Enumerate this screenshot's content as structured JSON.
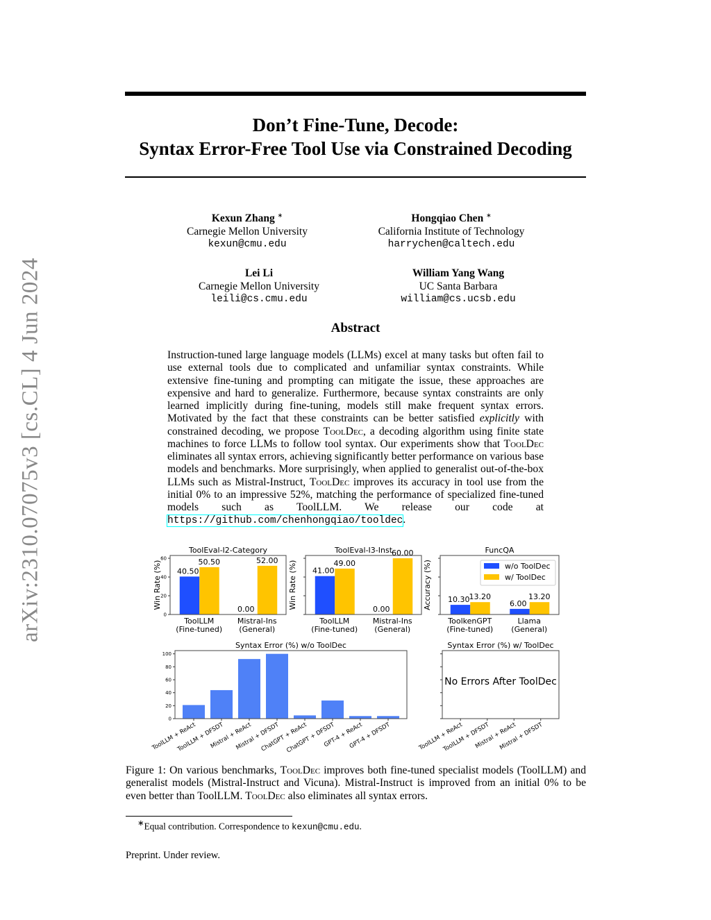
{
  "sidebar_stamp": "arXiv:2310.07075v3  [cs.CL]  4 Jun 2024",
  "title": {
    "line1": "Don’t Fine-Tune, Decode:",
    "line2": "Syntax Error-Free Tool Use via Constrained Decoding"
  },
  "authors": [
    {
      "name": "Kexun Zhang",
      "mark": "∗",
      "affiliation": "Carnegie Mellon University",
      "email": "kexun@cmu.edu"
    },
    {
      "name": "Hongqiao Chen",
      "mark": "∗",
      "affiliation": "California Institute of Technology",
      "email": "harrychen@caltech.edu"
    },
    {
      "name": "Lei Li",
      "mark": "",
      "affiliation": "Carnegie Mellon University",
      "email": "leili@cs.cmu.edu"
    },
    {
      "name": "William Yang Wang",
      "mark": "",
      "affiliation": "UC Santa Barbara",
      "email": "william@cs.ucsb.edu"
    }
  ],
  "abstract_heading": "Abstract",
  "abstract": [
    {
      "t": "Instruction-tuned large language models (LLMs) excel at many tasks but often fail to use external tools due to complicated and unfamiliar syntax constraints. While extensive fine-tuning and prompting can mitigate the issue, these approaches are expensive and hard to generalize. Furthermore, because syntax constraints are only learned implicitly during fine-tuning, models still make frequent syntax errors. Motivated by the fact that these constraints can be better satisfied ",
      "s": "n"
    },
    {
      "t": "explicitly",
      "s": "em"
    },
    {
      "t": " with constrained decoding, we propose ",
      "s": "n"
    },
    {
      "t": "ToolDec",
      "s": "sc"
    },
    {
      "t": ", a decoding algorithm using finite state machines to force LLMs to follow tool syntax. Our experiments show that ",
      "s": "n"
    },
    {
      "t": "ToolDec",
      "s": "sc"
    },
    {
      "t": " eliminates all syntax errors, achieving significantly better performance on various base models and benchmarks. More surprisingly, when applied to generalist out-of-the-box LLMs such as Mistral-Instruct, ",
      "s": "n"
    },
    {
      "t": "ToolDec",
      "s": "sc"
    },
    {
      "t": " improves its accuracy in tool use from the initial 0% to an impressive 52%, matching the performance of specialized fine-tuned models such as ToolLLM. We release our code at ",
      "s": "n"
    },
    {
      "t": "https://github.com/chenhongqiao/tooldec",
      "s": "link"
    },
    {
      "t": ".",
      "s": "n"
    }
  ],
  "caption": [
    {
      "t": "Figure 1: On various benchmarks, ",
      "s": "n"
    },
    {
      "t": "ToolDec",
      "s": "sc"
    },
    {
      "t": " improves both fine-tuned specialist models (ToolLLM) and generalist models (Mistral-Instruct and Vicuna). Mistral-Instruct is improved from an initial 0% to be even better than ToolLLM. ",
      "s": "n"
    },
    {
      "t": "ToolDec",
      "s": "sc"
    },
    {
      "t": " also eliminates all syntax errors.",
      "s": "n"
    }
  ],
  "footnote": {
    "mark": "∗",
    "text": "Equal contribution. Correspondence to ",
    "email": "kexun@cmu.edu",
    "end": "."
  },
  "preprint": "Preprint. Under review.",
  "colors": {
    "without": "#1f4fff",
    "with": "#ffc400",
    "syntax_bar": "#4f81f7"
  },
  "chart_data": [
    {
      "type": "bar",
      "title": "ToolEval-I2-Category",
      "ylabel": "Win Rate (%)",
      "ylim": [
        0,
        63
      ],
      "yticks": [
        0,
        20,
        40,
        60
      ],
      "categories": [
        "ToolLLM\n(Fine-tuned)",
        "Mistral-Ins\n(General)"
      ],
      "series": [
        {
          "name": "w/o ToolDec",
          "values": [
            40.5,
            0.0
          ]
        },
        {
          "name": "w/ ToolDec",
          "values": [
            50.5,
            52.0
          ]
        }
      ],
      "data_labels": [
        [
          "40.50",
          "0.00"
        ],
        [
          "50.50",
          "52.00"
        ]
      ]
    },
    {
      "type": "bar",
      "title": "ToolEval-I3-Inst",
      "ylabel": "Win Rate (%)",
      "ylim": [
        0,
        63
      ],
      "categories": [
        "ToolLLM\n(Fine-tuned)",
        "Mistral-Ins\n(General)"
      ],
      "series": [
        {
          "name": "w/o ToolDec",
          "values": [
            41.0,
            0.0
          ]
        },
        {
          "name": "w/ ToolDec",
          "values": [
            49.0,
            60.0
          ]
        }
      ],
      "data_labels": [
        [
          "41.00",
          "0.00"
        ],
        [
          "49.00",
          "60.00"
        ]
      ]
    },
    {
      "type": "bar",
      "title": "FuncQA",
      "ylabel": "Accuracy (%)",
      "ylim": [
        0,
        63
      ],
      "categories": [
        "ToolkenGPT\n(Fine-tuned)",
        "Llama\n(General)"
      ],
      "series": [
        {
          "name": "w/o ToolDec",
          "values": [
            10.3,
            6.0
          ]
        },
        {
          "name": "w/ ToolDec",
          "values": [
            13.2,
            13.2
          ]
        }
      ],
      "data_labels": [
        [
          "10.30",
          "6.00"
        ],
        [
          "13.20",
          "13.20"
        ]
      ],
      "legend": "top-right"
    },
    {
      "type": "bar",
      "title": "Syntax Error (%) w/o ToolDec",
      "ylim": [
        0,
        105
      ],
      "yticks": [
        0,
        20,
        40,
        60,
        80,
        100
      ],
      "categories": [
        "ToolLLM + ReAct",
        "ToolLLM + DFSDT",
        "Mistral + ReAct",
        "Mistral + DFSDT",
        "ChatGPT + ReAct",
        "ChatGPT + DFSDT",
        "GPT-4 + ReAct",
        "GPT-4 + DFSDT"
      ],
      "values": [
        21,
        44,
        92,
        100,
        5,
        28,
        4,
        4
      ]
    },
    {
      "type": "bar",
      "title": "Syntax Error (%) w/ ToolDec",
      "ylim": [
        0,
        105
      ],
      "categories": [
        "ToolLLM + ReAct",
        "ToolLLM + DFSDT",
        "Mistral + ReAct",
        "Mistral + DFSDT"
      ],
      "values": [
        0,
        0,
        0,
        0
      ],
      "annotation": "No Errors After ToolDec"
    }
  ]
}
